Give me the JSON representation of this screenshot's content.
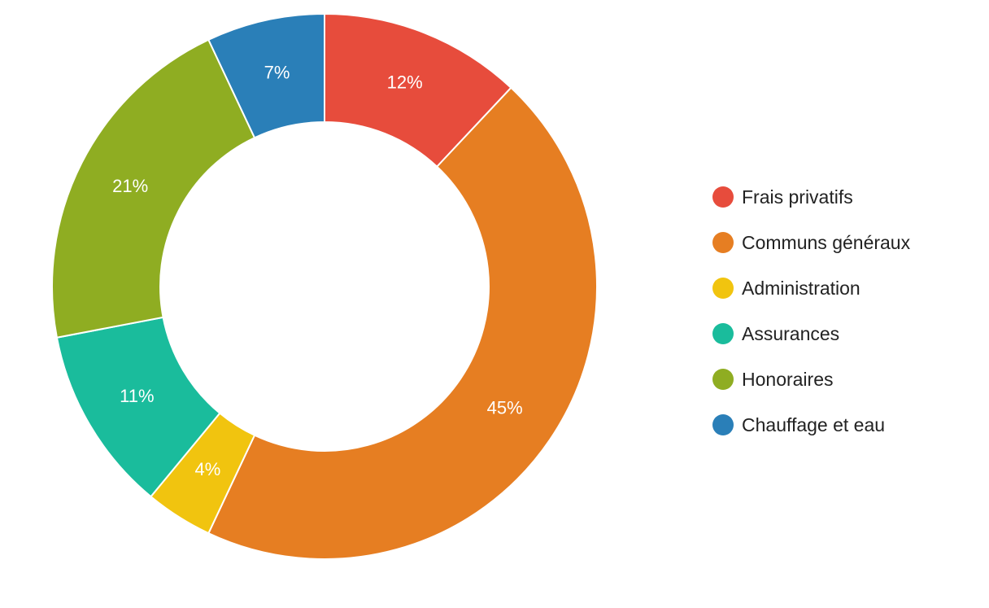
{
  "chart_data": {
    "type": "pie",
    "variant": "donut",
    "title": "",
    "legend_position": "right",
    "categories": [
      "Frais privatifs",
      "Communs généraux",
      "Administration",
      "Assurances",
      "Honoraires",
      "Chauffage et eau"
    ],
    "values": [
      12,
      45,
      4,
      11,
      21,
      7
    ],
    "labels": [
      "12%",
      "45%",
      "4%",
      "11%",
      "21%",
      "7%"
    ],
    "colors": [
      "#e74c3c",
      "#e67e22",
      "#f1c40f",
      "#1abc9c",
      "#8fad22",
      "#2a7fb8"
    ],
    "unit": "%"
  }
}
